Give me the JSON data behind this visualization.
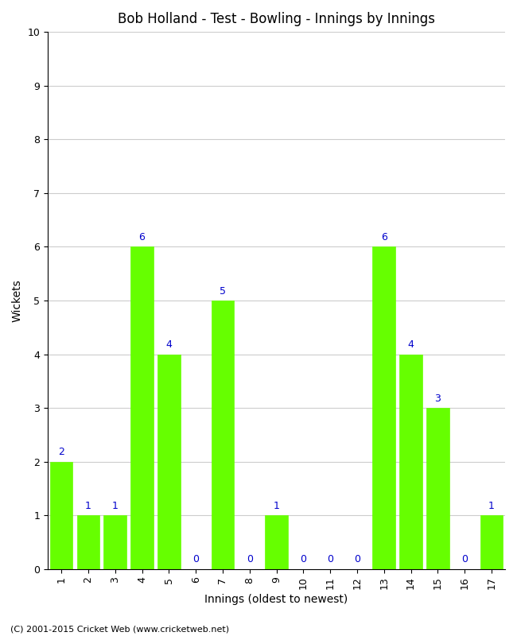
{
  "title": "Bob Holland - Test - Bowling - Innings by Innings",
  "xlabel": "Innings (oldest to newest)",
  "ylabel": "Wickets",
  "innings": [
    1,
    2,
    3,
    4,
    5,
    6,
    7,
    8,
    9,
    10,
    11,
    12,
    13,
    14,
    15,
    16,
    17
  ],
  "wickets": [
    2,
    1,
    1,
    6,
    4,
    0,
    5,
    0,
    1,
    0,
    0,
    0,
    6,
    4,
    3,
    0,
    1
  ],
  "bar_color": "#66ff00",
  "bar_edge_color": "#66ff00",
  "label_color": "#0000cc",
  "background_color": "#ffffff",
  "grid_color": "#cccccc",
  "ylim": [
    0,
    10
  ],
  "yticks": [
    0,
    1,
    2,
    3,
    4,
    5,
    6,
    7,
    8,
    9,
    10
  ],
  "title_fontsize": 12,
  "axis_label_fontsize": 10,
  "tick_label_fontsize": 9,
  "bar_label_fontsize": 9,
  "footer_text": "(C) 2001-2015 Cricket Web (www.cricketweb.net)",
  "footer_fontsize": 8
}
